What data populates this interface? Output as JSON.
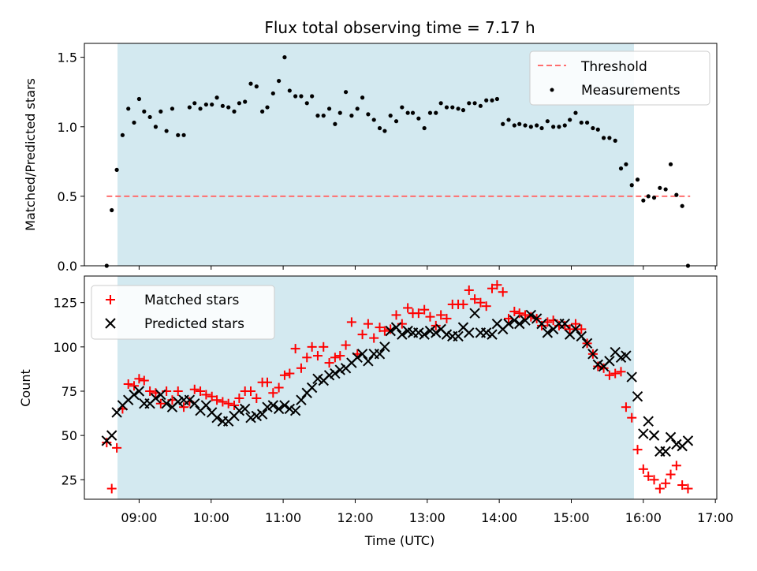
{
  "chart_data": [
    {
      "type": "scatter",
      "title": "Flux total observing time = 7.17 h",
      "xlabel": "",
      "ylabel": "Matched/Predicted stars",
      "xlim_hours": [
        8.24,
        17.02
      ],
      "ylim": [
        0,
        1.6
      ],
      "yticks": [
        0.0,
        0.5,
        1.0,
        1.5
      ],
      "ytick_labels": [
        "0.0",
        "0.5",
        "1.0",
        "1.5"
      ],
      "observing_window_hours": [
        8.7,
        15.87
      ],
      "observing_window_color": "#d3e9f0",
      "legend_position": "upper-right",
      "threshold": {
        "name": "Threshold",
        "value": 0.5,
        "x_range_hours": [
          8.55,
          16.65
        ],
        "color": "#ff6e6e",
        "style": "dashed"
      },
      "series": [
        {
          "name": "Measurements",
          "color": "#000000",
          "marker": "dot",
          "x_hours": [
            8.55,
            8.62,
            8.69,
            8.77,
            8.85,
            8.93,
            9.0,
            9.07,
            9.15,
            9.23,
            9.3,
            9.38,
            9.46,
            9.54,
            9.62,
            9.7,
            9.77,
            9.85,
            9.93,
            10.01,
            10.08,
            10.16,
            10.24,
            10.32,
            10.39,
            10.47,
            10.55,
            10.63,
            10.71,
            10.78,
            10.86,
            10.94,
            11.02,
            11.09,
            11.17,
            11.25,
            11.33,
            11.4,
            11.48,
            11.56,
            11.64,
            11.72,
            11.79,
            11.87,
            11.95,
            12.03,
            12.1,
            12.18,
            12.26,
            12.34,
            12.41,
            12.49,
            12.57,
            12.65,
            12.73,
            12.8,
            12.88,
            12.96,
            13.04,
            13.12,
            13.19,
            13.27,
            13.35,
            13.43,
            13.5,
            13.58,
            13.66,
            13.74,
            13.82,
            13.9,
            13.97,
            14.05,
            14.13,
            14.21,
            14.28,
            14.36,
            14.44,
            14.52,
            14.59,
            14.67,
            14.75,
            14.83,
            14.91,
            14.98,
            15.06,
            15.14,
            15.22,
            15.3,
            15.37,
            15.45,
            15.53,
            15.61,
            15.69,
            15.76,
            15.84,
            15.92,
            16.0,
            16.07,
            16.15,
            16.23,
            16.31,
            16.38,
            16.46,
            16.54,
            16.62
          ],
          "y": [
            0.0,
            0.4,
            0.69,
            0.94,
            1.13,
            1.03,
            1.2,
            1.11,
            1.07,
            1.0,
            1.11,
            0.97,
            1.13,
            0.94,
            0.94,
            1.14,
            1.17,
            1.13,
            1.16,
            1.16,
            1.21,
            1.15,
            1.14,
            1.11,
            1.17,
            1.18,
            1.31,
            1.29,
            1.11,
            1.14,
            1.24,
            1.33,
            1.5,
            1.26,
            1.22,
            1.22,
            1.17,
            1.22,
            1.08,
            1.08,
            1.13,
            1.02,
            1.1,
            1.25,
            1.08,
            1.13,
            1.21,
            1.09,
            1.05,
            0.99,
            0.97,
            1.08,
            1.04,
            1.14,
            1.1,
            1.1,
            1.06,
            0.99,
            1.1,
            1.1,
            1.17,
            1.14,
            1.14,
            1.13,
            1.12,
            1.17,
            1.17,
            1.15,
            1.19,
            1.19,
            1.2,
            1.02,
            1.05,
            1.01,
            1.02,
            1.01,
            1.0,
            1.01,
            0.99,
            1.04,
            1.0,
            1.0,
            1.01,
            1.05,
            1.1,
            1.03,
            1.03,
            0.99,
            0.98,
            0.92,
            0.92,
            0.9,
            0.7,
            0.73,
            0.58,
            0.62,
            0.47,
            0.5,
            0.49,
            0.56,
            0.55,
            0.73,
            0.51,
            0.43,
            0.0
          ]
        }
      ]
    },
    {
      "type": "scatter",
      "title": "",
      "xlabel": "Time (UTC)",
      "ylabel": "Count",
      "xlim_hours": [
        8.24,
        17.02
      ],
      "ylim": [
        14,
        140
      ],
      "yticks": [
        25,
        50,
        75,
        100,
        125
      ],
      "ytick_labels": [
        "25",
        "50",
        "75",
        "100",
        "125"
      ],
      "xticks_hours": [
        9,
        10,
        11,
        12,
        13,
        14,
        15,
        16,
        17
      ],
      "xtick_labels": [
        "09:00",
        "10:00",
        "11:00",
        "12:00",
        "13:00",
        "14:00",
        "15:00",
        "16:00",
        "17:00"
      ],
      "observing_window_hours": [
        8.7,
        15.87
      ],
      "observing_window_color": "#d3e9f0",
      "legend_position": "upper-left",
      "series": [
        {
          "name": "Matched stars",
          "color": "#ff0000",
          "marker": "plus",
          "x_hours": [
            8.55,
            8.62,
            8.69,
            8.77,
            8.85,
            8.93,
            9.0,
            9.07,
            9.15,
            9.23,
            9.3,
            9.38,
            9.46,
            9.54,
            9.62,
            9.7,
            9.77,
            9.85,
            9.93,
            10.01,
            10.08,
            10.16,
            10.24,
            10.32,
            10.39,
            10.47,
            10.55,
            10.63,
            10.71,
            10.78,
            10.86,
            10.94,
            11.02,
            11.09,
            11.17,
            11.25,
            11.33,
            11.4,
            11.48,
            11.56,
            11.64,
            11.72,
            11.79,
            11.87,
            11.95,
            12.03,
            12.1,
            12.18,
            12.26,
            12.34,
            12.41,
            12.49,
            12.57,
            12.65,
            12.73,
            12.8,
            12.88,
            12.96,
            13.04,
            13.12,
            13.19,
            13.27,
            13.35,
            13.43,
            13.5,
            13.58,
            13.66,
            13.74,
            13.82,
            13.9,
            13.97,
            14.05,
            14.13,
            14.21,
            14.28,
            14.36,
            14.44,
            14.52,
            14.59,
            14.67,
            14.75,
            14.83,
            14.91,
            14.98,
            15.06,
            15.14,
            15.22,
            15.3,
            15.37,
            15.45,
            15.53,
            15.61,
            15.69,
            15.76,
            15.84,
            15.92,
            16.0,
            16.07,
            16.15,
            16.23,
            16.31,
            16.38,
            16.46,
            16.54,
            16.62
          ],
          "y": [
            46,
            20,
            43,
            65,
            79,
            78,
            82,
            81,
            75,
            74,
            68,
            75,
            70,
            75,
            66,
            69,
            76,
            75,
            73,
            72,
            70,
            69,
            68,
            67,
            71,
            75,
            75,
            71,
            80,
            80,
            74,
            77,
            84,
            85,
            99,
            88,
            94,
            100,
            95,
            100,
            91,
            94,
            95,
            101,
            114,
            96,
            107,
            113,
            105,
            111,
            109,
            110,
            118,
            113,
            122,
            119,
            119,
            121,
            117,
            112,
            118,
            116,
            124,
            124,
            124,
            132,
            127,
            125,
            123,
            133,
            135,
            131,
            116,
            120,
            119,
            118,
            117,
            116,
            112,
            114,
            115,
            112,
            112,
            110,
            113,
            110,
            102,
            96,
            89,
            88,
            84,
            85,
            86,
            66,
            60,
            42,
            31,
            27,
            25,
            20,
            23,
            28,
            33,
            22,
            20
          ]
        },
        {
          "name": "Predicted stars",
          "color": "#000000",
          "marker": "x",
          "x_hours": [
            8.55,
            8.62,
            8.69,
            8.77,
            8.85,
            8.93,
            9.0,
            9.07,
            9.15,
            9.23,
            9.3,
            9.38,
            9.46,
            9.54,
            9.62,
            9.7,
            9.77,
            9.85,
            9.93,
            10.01,
            10.08,
            10.16,
            10.24,
            10.32,
            10.39,
            10.47,
            10.55,
            10.63,
            10.71,
            10.78,
            10.86,
            10.94,
            11.02,
            11.09,
            11.17,
            11.25,
            11.33,
            11.4,
            11.48,
            11.56,
            11.64,
            11.72,
            11.79,
            11.87,
            11.95,
            12.03,
            12.1,
            12.18,
            12.26,
            12.34,
            12.41,
            12.49,
            12.57,
            12.65,
            12.73,
            12.8,
            12.88,
            12.96,
            13.04,
            13.12,
            13.19,
            13.27,
            13.35,
            13.43,
            13.5,
            13.58,
            13.66,
            13.74,
            13.82,
            13.9,
            13.97,
            14.05,
            14.13,
            14.21,
            14.28,
            14.36,
            14.44,
            14.52,
            14.59,
            14.67,
            14.75,
            14.83,
            14.91,
            14.98,
            15.06,
            15.14,
            15.22,
            15.3,
            15.37,
            15.45,
            15.53,
            15.61,
            15.69,
            15.76,
            15.84,
            15.92,
            16.0,
            16.07,
            16.15,
            16.23,
            16.31,
            16.38,
            16.46,
            16.54,
            16.62
          ],
          "y": [
            47,
            50,
            63,
            67,
            70,
            73,
            75,
            68,
            68,
            71,
            73,
            68,
            66,
            69,
            70,
            70,
            68,
            64,
            67,
            63,
            60,
            58,
            58,
            61,
            64,
            65,
            60,
            61,
            62,
            66,
            67,
            65,
            67,
            65,
            64,
            70,
            74,
            77,
            82,
            81,
            84,
            85,
            87,
            88,
            91,
            94,
            96,
            92,
            96,
            96,
            100,
            109,
            111,
            107,
            109,
            108,
            108,
            107,
            109,
            108,
            110,
            107,
            106,
            106,
            111,
            108,
            119,
            108,
            108,
            107,
            113,
            110,
            113,
            115,
            113,
            115,
            118,
            116,
            113,
            108,
            110,
            113,
            113,
            107,
            110,
            106,
            102,
            96,
            90,
            89,
            92,
            97,
            94,
            95,
            83,
            72,
            51,
            58,
            50,
            41,
            41,
            49,
            45,
            44,
            47
          ]
        }
      ]
    }
  ]
}
